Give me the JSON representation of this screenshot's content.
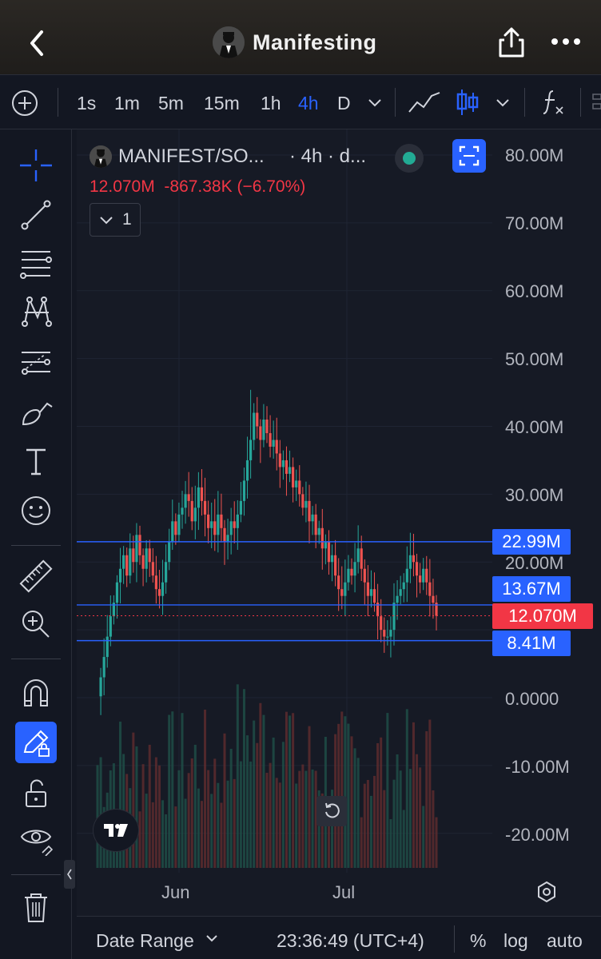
{
  "header": {
    "title": "Manifesting"
  },
  "timeframes": [
    {
      "label": "1s",
      "active": false
    },
    {
      "label": "1m",
      "active": false
    },
    {
      "label": "5m",
      "active": false
    },
    {
      "label": "15m",
      "active": false
    },
    {
      "label": "1h",
      "active": false
    },
    {
      "label": "4h",
      "active": true
    },
    {
      "label": "D",
      "active": false
    }
  ],
  "legend": {
    "symbol": "MANIFEST/SO...",
    "interval_info": "· 4h · d...",
    "values": "12.070M  -867.38K (−6.70%)",
    "collapse_count": "1"
  },
  "colors": {
    "accent": "#2962ff",
    "up": "#26a69a",
    "down": "#ef5350",
    "background": "#131722"
  },
  "chart_data": {
    "type": "candlestick",
    "x_ticks": [
      "Jun",
      "Jul"
    ],
    "y_ticks": [
      "80.00M",
      "70.00M",
      "60.00M",
      "50.00M",
      "40.00M",
      "30.00M",
      "20.00M",
      "0.0000",
      "-10.00M",
      "-20.00M"
    ],
    "ylim": [
      -20000000,
      80000000
    ],
    "last_price": "12.070M",
    "horizontal_lines": [
      {
        "label": "22.99M",
        "value": 22990000
      },
      {
        "label": "13.67M",
        "value": 13670000
      },
      {
        "label": "8.41M",
        "value": 8410000
      }
    ],
    "series_close": [
      0.2,
      3,
      6,
      9,
      12,
      14,
      17,
      19,
      21,
      18,
      22,
      20,
      24,
      21,
      19,
      22,
      20,
      18,
      16,
      15,
      17,
      20,
      23,
      26,
      24,
      27,
      28,
      30,
      29,
      26,
      28,
      31,
      29,
      27,
      25,
      26,
      24,
      27,
      25,
      23,
      24,
      26,
      25,
      27,
      29,
      32,
      35,
      38,
      42,
      40,
      38,
      41,
      39,
      37,
      38,
      36,
      34,
      35,
      33,
      34,
      31,
      32,
      30,
      28,
      29,
      26,
      27,
      24,
      25,
      22,
      23,
      20,
      21,
      18,
      16,
      15,
      17,
      19,
      18,
      20,
      22,
      19,
      17,
      15,
      16,
      14,
      12,
      10,
      9,
      9,
      10,
      14,
      15,
      16,
      17,
      19,
      21,
      20,
      18,
      17,
      19,
      17,
      15,
      14,
      12.07
    ],
    "volume_note": "volume histogram"
  },
  "footer": {
    "date_range": "Date Range",
    "time": "23:36:49 (UTC+4)",
    "percent": "%",
    "log": "log",
    "auto": "auto"
  }
}
